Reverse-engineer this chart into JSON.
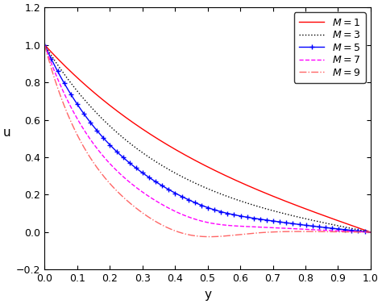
{
  "xlabel": "y",
  "ylabel": "u",
  "xlim": [
    0,
    1
  ],
  "ylim": [
    -0.2,
    1.2
  ],
  "xticks": [
    0.0,
    0.1,
    0.2,
    0.3,
    0.4,
    0.5,
    0.6,
    0.7,
    0.8,
    0.9,
    1.0
  ],
  "yticks": [
    -0.2,
    0.0,
    0.2,
    0.4,
    0.6,
    0.8,
    1.0,
    1.2
  ],
  "M_values": [
    1,
    3,
    5,
    7,
    9
  ],
  "colors": [
    "#FF0000",
    "#000000",
    "#0000FF",
    "#FF00FF",
    "#FF6666"
  ],
  "linestyles": [
    "solid",
    "dotted",
    "solid",
    "dashed",
    "dashdot"
  ],
  "markers": [
    null,
    null,
    "+",
    null,
    null
  ],
  "marker_sizes": [
    null,
    null,
    4,
    null,
    null
  ],
  "marker_every": 10,
  "linewidths": [
    1.0,
    1.0,
    1.0,
    1.0,
    1.0
  ],
  "legend_labels": [
    "$M = 1$",
    "$M = 3$",
    "$M = 5$",
    "$M = 7$",
    "$M = 9$"
  ],
  "legend_loc": "upper right",
  "background_color": "#FFFFFF",
  "n_points": 500,
  "Ha_values": [
    1.0,
    3.0,
    5.0,
    7.0,
    9.0
  ],
  "scale": 5.0
}
